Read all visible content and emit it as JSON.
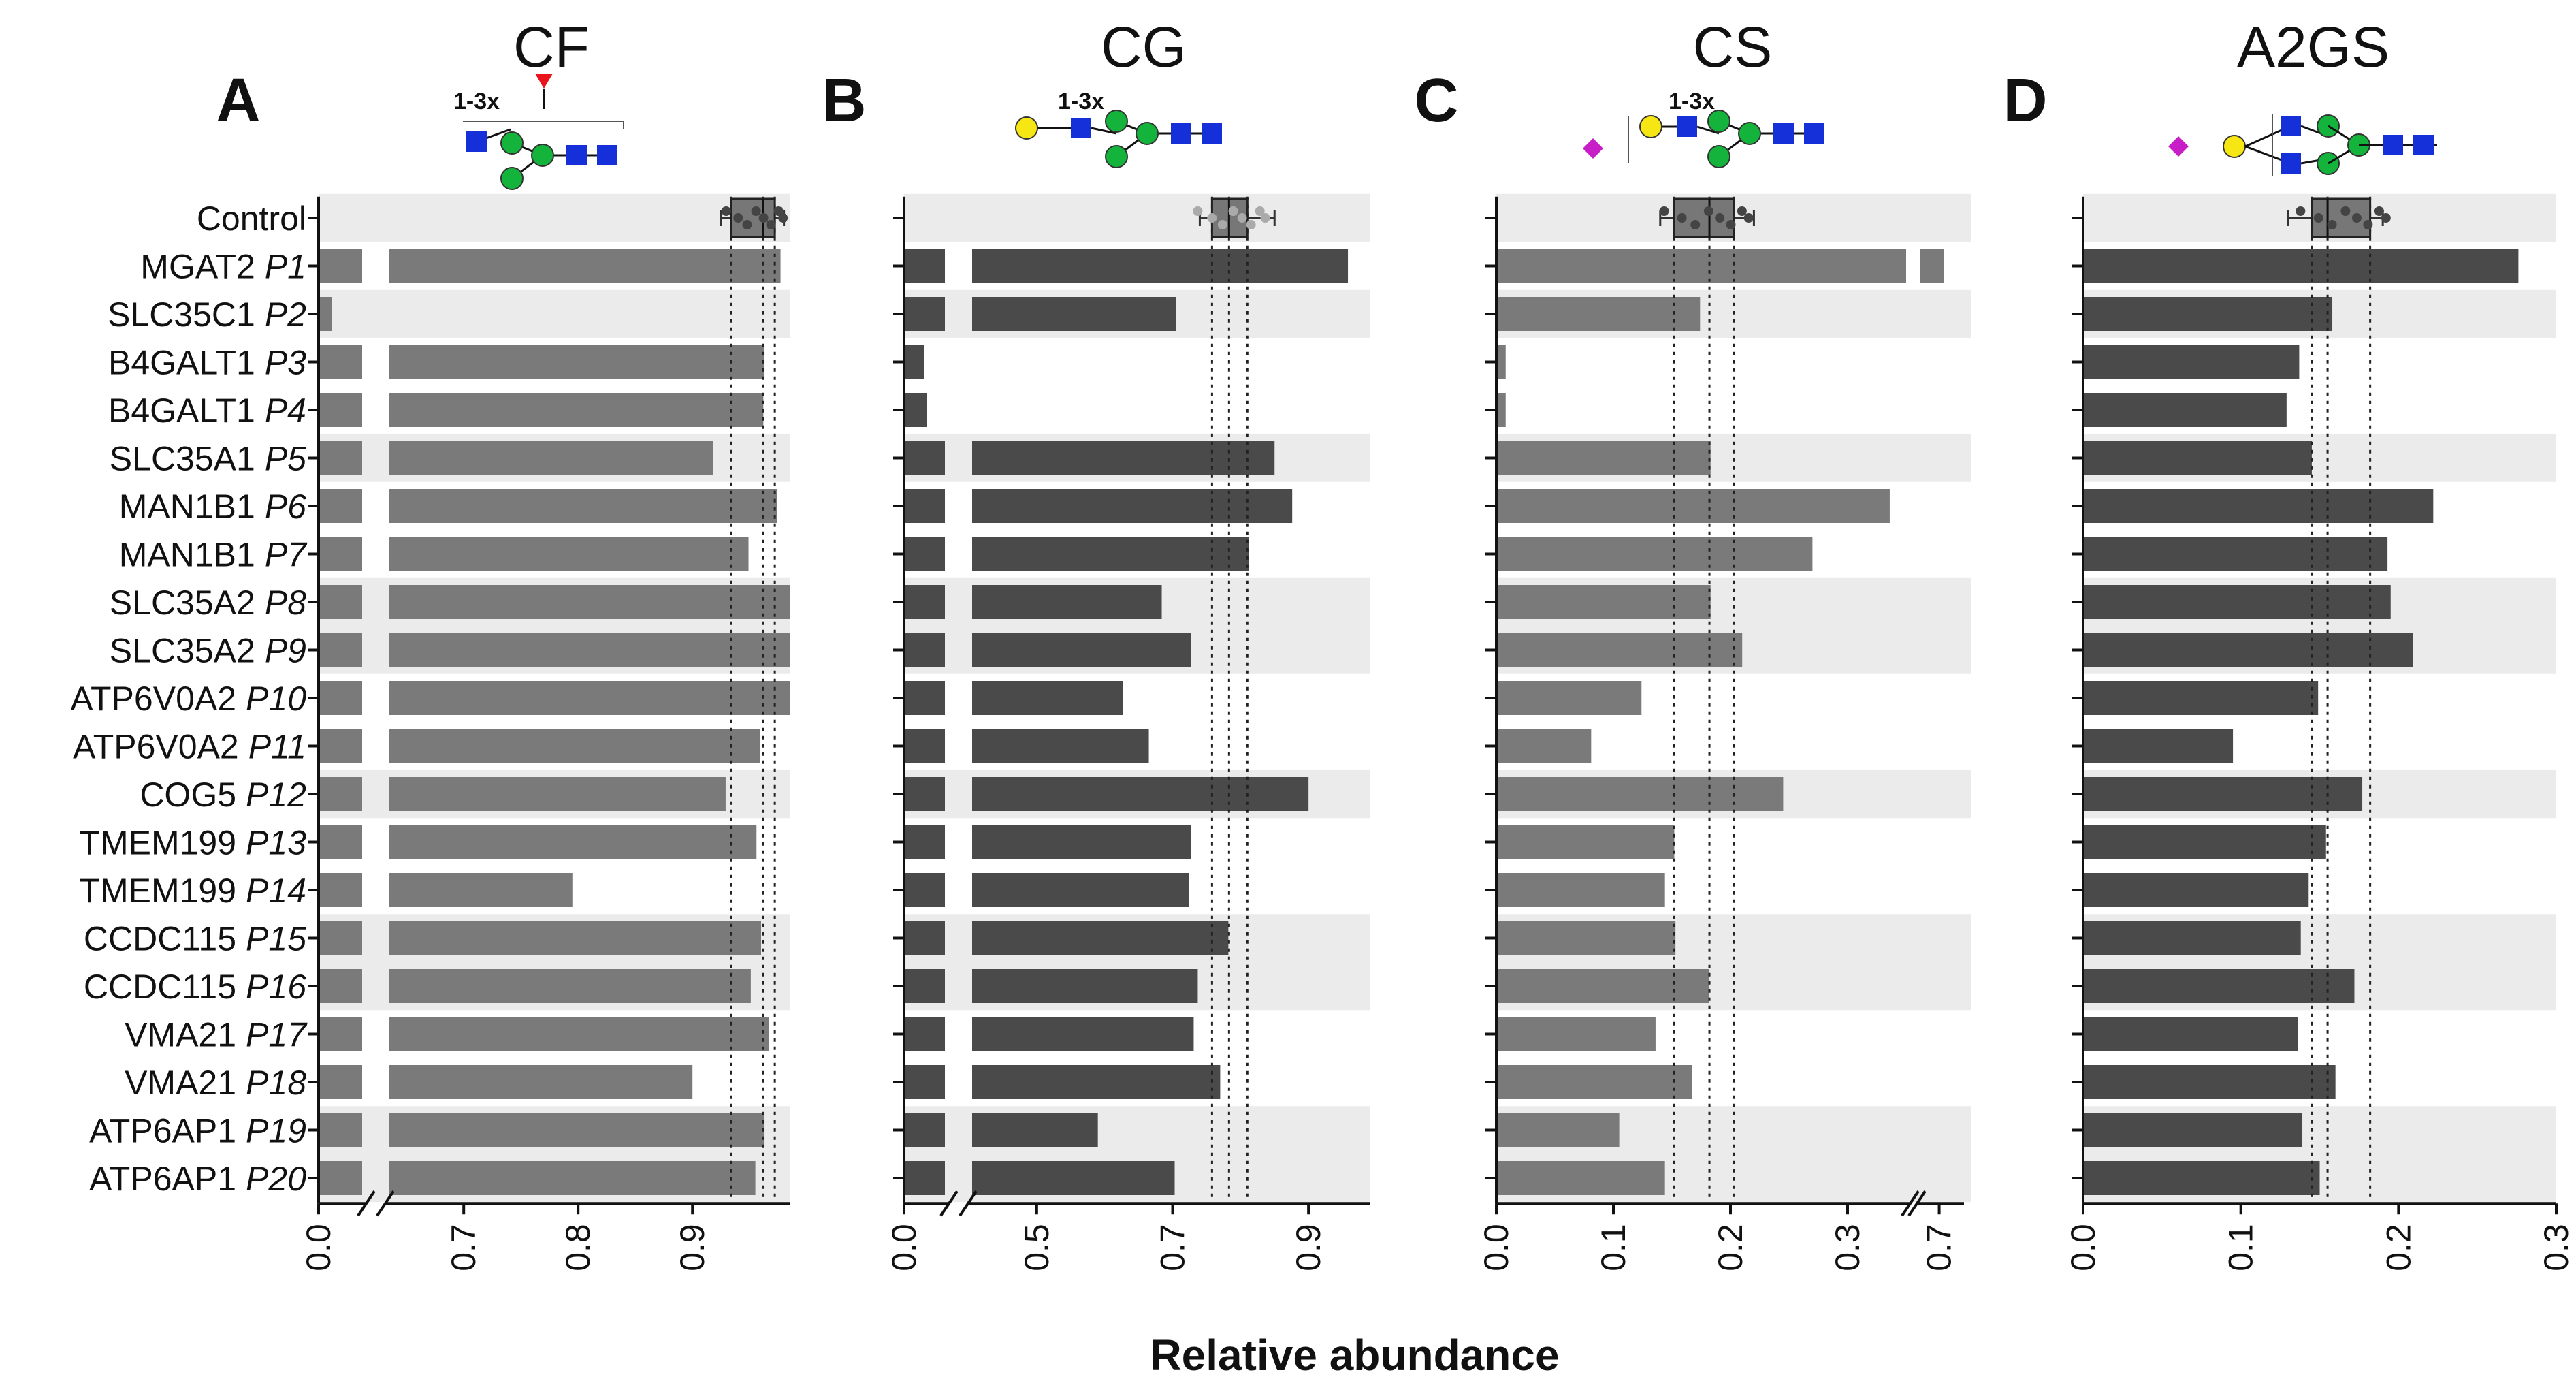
{
  "figure": {
    "xlabel": "Relative abundance",
    "sample_names": [
      "Control",
      "MGAT2",
      "SLC35C1",
      "B4GALT1",
      "B4GALT1",
      "SLC35A1",
      "MAN1B1",
      "MAN1B1",
      "SLC35A2",
      "SLC35A2",
      "ATP6V0A2",
      "ATP6V0A2",
      "COG5",
      "TMEM199",
      "TMEM199",
      "CCDC115",
      "CCDC115",
      "VMA21",
      "VMA21",
      "ATP6AP1",
      "ATP6AP1"
    ],
    "patient_ids": [
      "",
      "P1",
      "P2",
      "P3",
      "P4",
      "P5",
      "P6",
      "P7",
      "P8",
      "P9",
      "P10",
      "P11",
      "P12",
      "P13",
      "P14",
      "P15",
      "P16",
      "P17",
      "P18",
      "P19",
      "P20"
    ],
    "glycan_repeat_label": "1-3x",
    "colors": {
      "bar_light": "#7a7a7a",
      "bar_dark": "#4a4a4a",
      "band": "#ebebeb",
      "fucose": "#e8141a",
      "glcnac": "#1530d8",
      "mannose": "#14b43c",
      "galactose": "#f5e614",
      "sialic": "#c81ec8"
    }
  },
  "chart_data": [
    {
      "type": "bar",
      "panel": "A",
      "title": "CF",
      "ticks": [
        "0.0",
        "0.7",
        "0.8",
        "0.9"
      ],
      "ref_lines": [
        0.934,
        0.962,
        0.972
      ],
      "control_box": {
        "q1": 0.934,
        "median": 0.962,
        "q3": 0.972,
        "min": 0.925,
        "max": 0.98
      },
      "values": [
        null,
        0.977,
        0.015,
        0.963,
        0.962,
        0.918,
        0.974,
        0.949,
        0.985,
        0.985,
        0.985,
        0.959,
        0.929,
        0.956,
        0.795,
        0.96,
        0.951,
        0.967,
        0.9,
        0.963,
        0.955
      ]
    },
    {
      "type": "bar",
      "panel": "B",
      "title": "CG",
      "ticks": [
        "0.0",
        "0.5",
        "0.7",
        "0.9"
      ],
      "ref_lines": [
        0.758,
        0.783,
        0.81
      ],
      "control_box": {
        "q1": 0.758,
        "median": 0.783,
        "q3": 0.81,
        "min": 0.74,
        "max": 0.85
      },
      "values": [
        null,
        0.958,
        0.705,
        0.025,
        0.028,
        0.85,
        0.876,
        0.812,
        0.684,
        0.727,
        0.627,
        0.665,
        0.9,
        0.727,
        0.724,
        0.782,
        0.737,
        0.731,
        0.77,
        0.59,
        0.703
      ]
    },
    {
      "type": "bar",
      "panel": "C",
      "title": "CS",
      "ticks": [
        "0.0",
        "0.1",
        "0.2",
        "0.3",
        "0.7"
      ],
      "ref_lines": [
        0.152,
        0.182,
        0.203
      ],
      "control_box": {
        "q1": 0.152,
        "median": 0.182,
        "q3": 0.203,
        "min": 0.14,
        "max": 0.22
      },
      "values": [
        null,
        0.71,
        0.174,
        0.008,
        0.008,
        0.183,
        0.336,
        0.27,
        0.183,
        0.21,
        0.124,
        0.081,
        0.245,
        0.152,
        0.144,
        0.153,
        0.182,
        0.136,
        0.167,
        0.105,
        0.144
      ]
    },
    {
      "type": "bar",
      "panel": "D",
      "title": "A2GS",
      "ticks": [
        "0.0",
        "0.1",
        "0.2",
        "0.3"
      ],
      "ref_lines": [
        0.145,
        0.155,
        0.182
      ],
      "control_box": {
        "q1": 0.145,
        "median": 0.155,
        "q3": 0.182,
        "min": 0.13,
        "max": 0.19
      },
      "values": [
        null,
        0.276,
        0.158,
        0.137,
        0.129,
        0.145,
        0.222,
        0.193,
        0.195,
        0.209,
        0.149,
        0.095,
        0.177,
        0.154,
        0.143,
        0.138,
        0.172,
        0.136,
        0.16,
        0.139,
        0.15
      ]
    }
  ]
}
